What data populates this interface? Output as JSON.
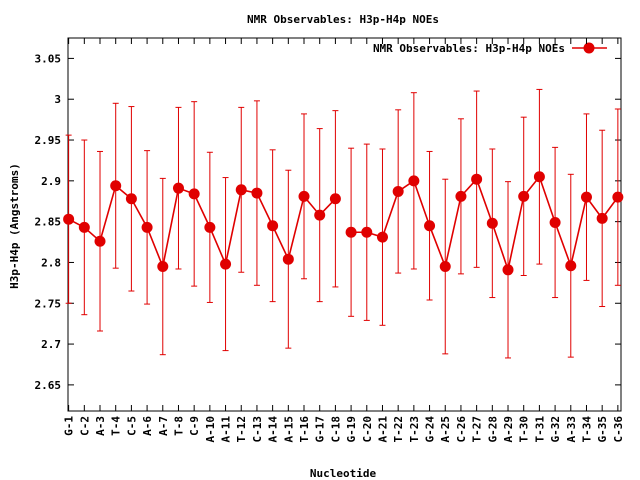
{
  "chart_data": {
    "type": "line",
    "title": "NMR Observables: H3p-H4p NOEs",
    "xlabel": "Nucleotide",
    "ylabel": "H3p-H4p (Angstroms)",
    "ylim": [
      2.618,
      3.075
    ],
    "yticks": [
      "2.65",
      "2.7",
      "2.75",
      "2.8",
      "2.85",
      "2.9",
      "2.95",
      "3",
      "3.05"
    ],
    "legend_position": "top-right",
    "grid": false,
    "color": "#e00000",
    "series": [
      {
        "name": "NMR Observables: H3p-H4p NOEs",
        "segments": [
          {
            "labels": [
              "G-1",
              "C-2",
              "A-3",
              "T-4",
              "C-5",
              "A-6",
              "A-7",
              "T-8",
              "C-9",
              "A-10",
              "A-11",
              "T-12",
              "C-13",
              "A-14",
              "A-15",
              "T-16",
              "G-17",
              "C-18"
            ],
            "x": [
              1,
              2,
              3,
              4,
              5,
              6,
              7,
              8,
              9,
              10,
              11,
              12,
              13,
              14,
              15,
              16,
              17,
              18
            ],
            "y": [
              2.853,
              2.843,
              2.826,
              2.894,
              2.878,
              2.843,
              2.795,
              2.891,
              2.884,
              2.843,
              2.798,
              2.889,
              2.885,
              2.845,
              2.804,
              2.881,
              2.858,
              2.878
            ],
            "err": [
              0.103,
              0.107,
              0.11,
              0.101,
              0.113,
              0.094,
              0.108,
              0.099,
              0.113,
              0.092,
              0.106,
              0.101,
              0.113,
              0.093,
              0.109,
              0.101,
              0.106,
              0.108
            ]
          },
          {
            "labels": [
              "G-19",
              "C-20",
              "A-21",
              "T-22",
              "T-23",
              "G-24",
              "A-25",
              "C-26",
              "T-27",
              "G-28",
              "A-29",
              "T-30",
              "T-31",
              "G-32",
              "A-33",
              "T-34",
              "G-35",
              "C-36"
            ],
            "x": [
              19,
              20,
              21,
              22,
              23,
              24,
              25,
              26,
              27,
              28,
              29,
              30,
              31,
              32,
              33,
              34,
              35,
              36
            ],
            "y": [
              2.837,
              2.837,
              2.831,
              2.887,
              2.9,
              2.845,
              2.795,
              2.881,
              2.902,
              2.848,
              2.791,
              2.881,
              2.905,
              2.849,
              2.796,
              2.88,
              2.854,
              2.88
            ],
            "err": [
              0.103,
              0.108,
              0.108,
              0.1,
              0.108,
              0.091,
              0.107,
              0.095,
              0.108,
              0.091,
              0.108,
              0.097,
              0.107,
              0.092,
              0.112,
              0.102,
              0.108,
              0.108
            ]
          }
        ]
      }
    ]
  }
}
